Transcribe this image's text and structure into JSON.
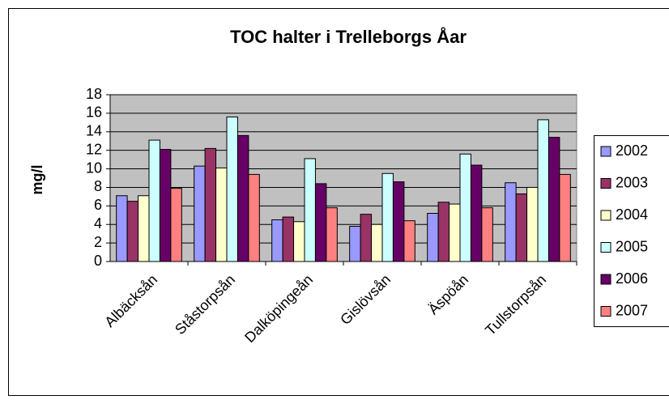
{
  "chart_data": {
    "type": "bar",
    "title": "TOC halter i Trelleborgs Åar",
    "y_label": "mg/l",
    "categories": [
      "Albäcksån",
      "Ståstorpsån",
      "Dalköpingeån",
      "Gislövsån",
      "Äspöån",
      "Tullstorpsån"
    ],
    "series": [
      {
        "name": "2002",
        "color": "#9999ff",
        "values": [
          7.1,
          10.3,
          4.5,
          3.8,
          5.2,
          8.5
        ]
      },
      {
        "name": "2003",
        "color": "#993366",
        "values": [
          6.5,
          12.2,
          4.8,
          5.1,
          6.4,
          7.3
        ]
      },
      {
        "name": "2004",
        "color": "#ffffcc",
        "values": [
          7.1,
          10.1,
          4.3,
          4.0,
          6.2,
          8.0
        ]
      },
      {
        "name": "2005",
        "color": "#ccffff",
        "values": [
          13.1,
          15.6,
          11.1,
          9.5,
          11.6,
          15.3
        ]
      },
      {
        "name": "2006",
        "color": "#660066",
        "values": [
          12.1,
          13.6,
          8.4,
          8.6,
          10.4,
          13.4
        ]
      },
      {
        "name": "2007",
        "color": "#ff8080",
        "values": [
          7.9,
          9.4,
          5.8,
          4.4,
          5.8,
          9.4
        ]
      }
    ],
    "ylim": [
      0,
      18
    ],
    "yticks": [
      0,
      2,
      4,
      6,
      8,
      10,
      12,
      14,
      16,
      18
    ],
    "grid": true,
    "legend": "right"
  }
}
